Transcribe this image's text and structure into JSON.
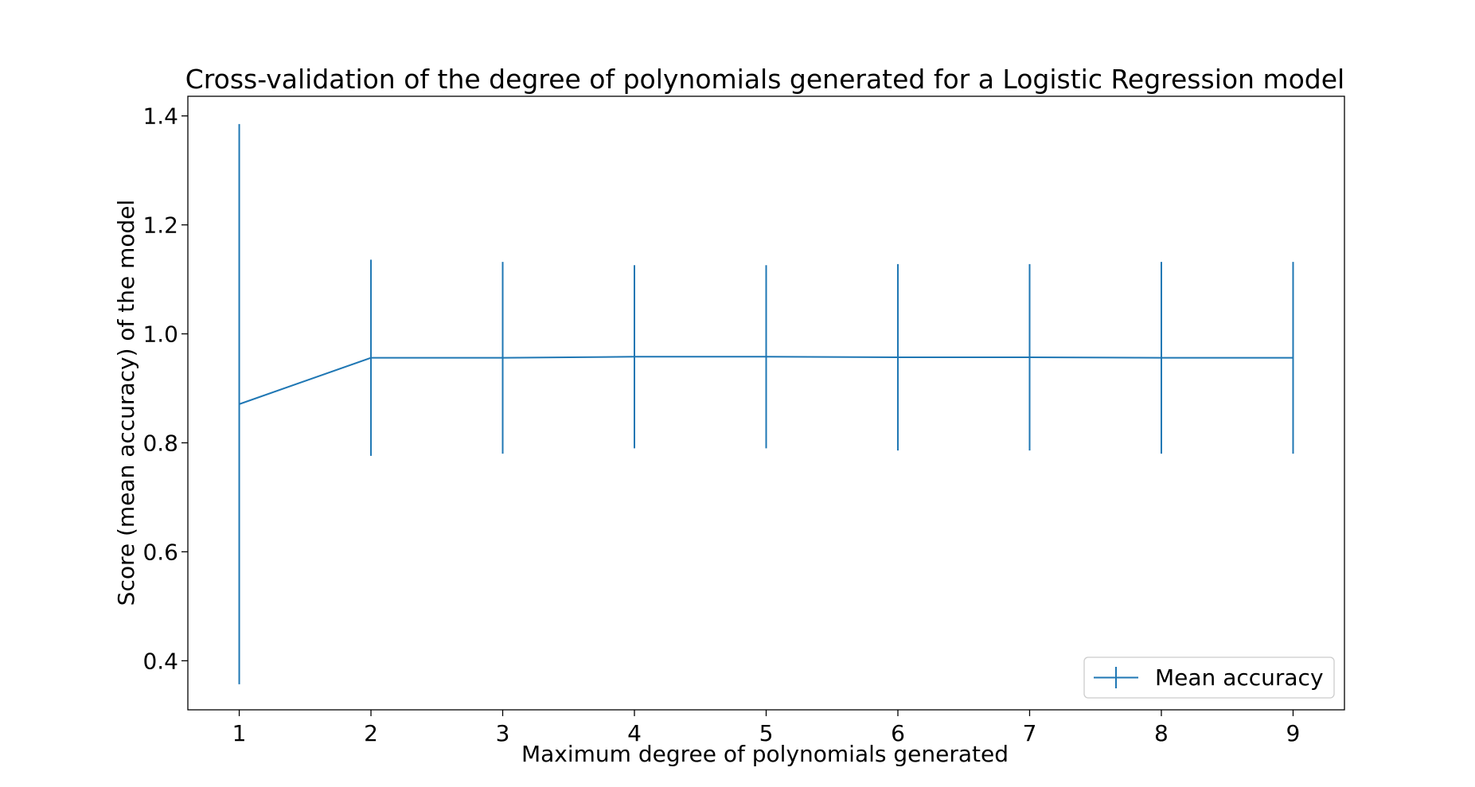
{
  "chart_data": {
    "type": "line",
    "title": "Cross-validation of the degree of polynomials generated for a Logistic Regression model",
    "xlabel": "Maximum degree of polynomials generated",
    "ylabel": "Score (mean accuracy) of the model",
    "x": [
      1,
      2,
      3,
      4,
      5,
      6,
      7,
      8,
      9
    ],
    "x_ticks": [
      "1",
      "2",
      "3",
      "4",
      "5",
      "6",
      "7",
      "8",
      "9"
    ],
    "xlim": [
      0.61,
      9.39
    ],
    "ylim": [
      0.31,
      1.436
    ],
    "y_ticks": [
      "0.4",
      "0.6",
      "0.8",
      "1.0",
      "1.2",
      "1.4"
    ],
    "y_tick_values": [
      0.4,
      0.6,
      0.8,
      1.0,
      1.2,
      1.4
    ],
    "grid": false,
    "legend_position": "lower-right",
    "series": [
      {
        "name": "Mean accuracy",
        "color": "#1f77b4",
        "values": [
          0.871,
          0.956,
          0.956,
          0.958,
          0.958,
          0.957,
          0.957,
          0.956,
          0.956
        ],
        "error": [
          0.514,
          0.18,
          0.176,
          0.168,
          0.168,
          0.171,
          0.171,
          0.176,
          0.176
        ]
      }
    ]
  }
}
